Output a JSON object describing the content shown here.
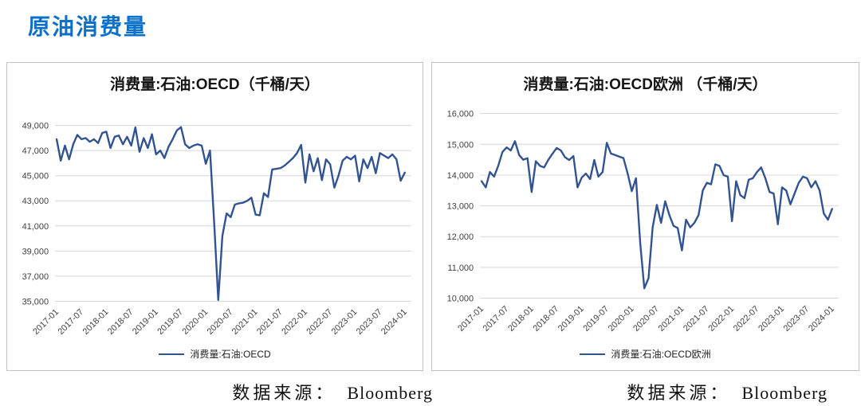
{
  "page": {
    "title": "原油消费量"
  },
  "charts": [
    {
      "title": "消费量:石油:OECD（千桶/天）",
      "legend": "消费量:石油:OECD",
      "source_label": "数据来源：",
      "source_value": "Bloomberg"
    },
    {
      "title": "消费量:石油:OECD欧洲 （千桶/天）",
      "legend": "消费量:石油:OECD欧洲",
      "source_label": "数据来源：",
      "source_value": "Bloomberg"
    }
  ],
  "chart_data": [
    {
      "type": "line",
      "title": "消费量:石油:OECD（千桶/天）",
      "xlabel": "",
      "ylabel": "",
      "x_start": "2017-01",
      "x_freq": "monthly",
      "x_tick_labels": [
        "2017-01",
        "2017-07",
        "2018-01",
        "2018-07",
        "2019-01",
        "2019-07",
        "2020-01",
        "2020-07",
        "2021-01",
        "2021-07",
        "2022-01",
        "2022-07",
        "2023-01",
        "2023-07",
        "2024-01"
      ],
      "x_tick_every": 6,
      "ylim": [
        35000,
        49000
      ],
      "y_step": 2000,
      "y_tick_labels": [
        "35,000",
        "37,000",
        "39,000",
        "41,000",
        "43,000",
        "45,000",
        "47,000",
        "49,000"
      ],
      "grid": "horizontal",
      "legend_position": "bottom",
      "line_color": "#31538f",
      "grid_color": "#d6d6d6",
      "series": [
        {
          "name": "消费量:石油:OECD",
          "values": [
            47900,
            46200,
            47400,
            46300,
            47500,
            48250,
            47900,
            48000,
            47700,
            47900,
            47600,
            48400,
            48500,
            47200,
            48100,
            48200,
            47500,
            48100,
            47400,
            48850,
            46900,
            48000,
            47200,
            48300,
            46700,
            47000,
            46400,
            47300,
            47900,
            48600,
            48870,
            47500,
            47200,
            47400,
            47500,
            47400,
            45950,
            47000,
            41300,
            35100,
            40200,
            42000,
            41700,
            42700,
            42800,
            42850,
            43000,
            43250,
            41900,
            41850,
            43600,
            43300,
            45500,
            45550,
            45600,
            45800,
            46100,
            46400,
            46800,
            47450,
            44450,
            46700,
            45350,
            46400,
            44650,
            46300,
            45900,
            44050,
            45000,
            46200,
            46500,
            46300,
            46600,
            44550,
            46300,
            45600,
            46500,
            45200,
            46800,
            46600,
            46400,
            46700,
            46300,
            44600,
            45250
          ]
        }
      ]
    },
    {
      "type": "line",
      "title": "消费量:石油:OECD欧洲 （千桶/天）",
      "xlabel": "",
      "ylabel": "",
      "x_start": "2017-01",
      "x_freq": "monthly",
      "x_tick_labels": [
        "2017-01",
        "2017-07",
        "2018-01",
        "2018-07",
        "2019-01",
        "2019-07",
        "2020-01",
        "2020-07",
        "2021-01",
        "2021-07",
        "2022-01",
        "2022-07",
        "2023-01",
        "2023-07",
        "2024-01"
      ],
      "x_tick_every": 6,
      "ylim": [
        10000,
        16000
      ],
      "y_step": 1000,
      "y_tick_labels": [
        "10,000",
        "11,000",
        "12,000",
        "13,000",
        "14,000",
        "15,000",
        "16,000"
      ],
      "grid": "horizontal",
      "legend_position": "bottom",
      "line_color": "#31538f",
      "grid_color": "#d6d6d6",
      "series": [
        {
          "name": "消费量:石油:OECD欧洲",
          "values": [
            13800,
            13600,
            14100,
            13950,
            14300,
            14750,
            14900,
            14800,
            15100,
            14650,
            14500,
            14550,
            13450,
            14450,
            14300,
            14250,
            14500,
            14700,
            14880,
            14800,
            14580,
            14490,
            14620,
            13600,
            13920,
            14050,
            13870,
            14490,
            13950,
            14100,
            15050,
            14700,
            14650,
            14600,
            14550,
            14050,
            13480,
            13900,
            11800,
            10320,
            10650,
            12300,
            13030,
            12450,
            13150,
            12700,
            12350,
            12280,
            11550,
            12550,
            12300,
            12450,
            12700,
            13500,
            13750,
            13700,
            14350,
            14300,
            14000,
            13950,
            12500,
            13800,
            13350,
            13250,
            13850,
            13900,
            14100,
            14250,
            13900,
            13450,
            13400,
            12400,
            13600,
            13500,
            13050,
            13400,
            13750,
            13950,
            13900,
            13600,
            13800,
            13500,
            12750,
            12550,
            12900
          ]
        }
      ]
    }
  ]
}
